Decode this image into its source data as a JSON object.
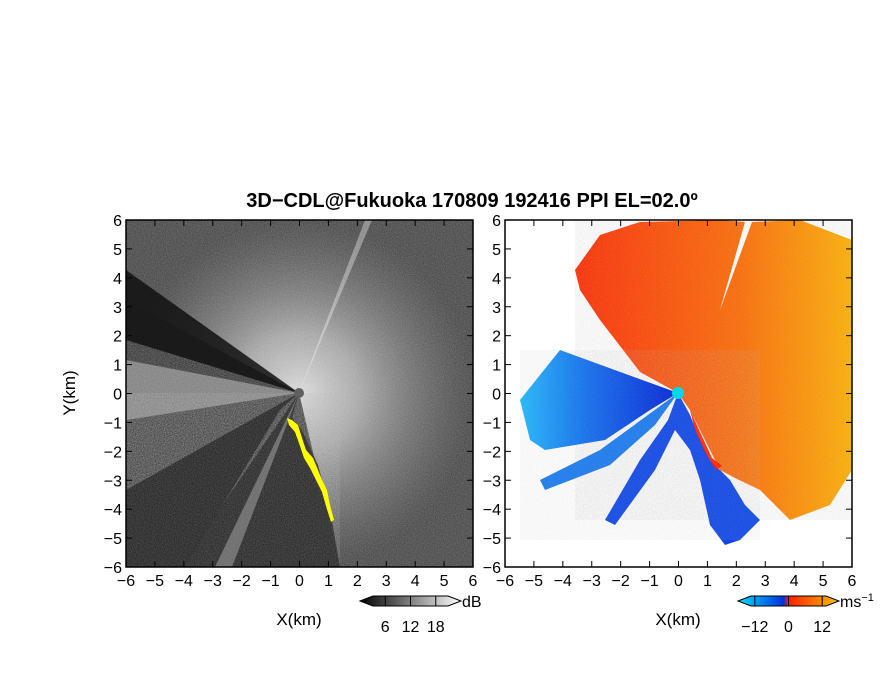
{
  "figure": {
    "title": "3D−CDL@Fukuoka 170809 192416 PPI EL=02.0º"
  },
  "chart_data": [
    {
      "type": "heatmap",
      "panel": "left",
      "description_quantity": "signal intensity",
      "xlabel": "X(km)",
      "ylabel": "Y(km)",
      "xlim": [
        -6,
        6
      ],
      "ylim": [
        -6,
        6
      ],
      "xticks": [
        "−6",
        "−5",
        "−4",
        "−3",
        "−2",
        "−1",
        "0",
        "1",
        "2",
        "3",
        "4",
        "5",
        "6"
      ],
      "yticks": [
        "−6",
        "−5",
        "−4",
        "−3",
        "−2",
        "−1",
        "0",
        "1",
        "2",
        "3",
        "4",
        "5",
        "6"
      ],
      "colorbar": {
        "unit": "dB",
        "ticks": [
          "6",
          "12",
          "18"
        ],
        "range": [
          0,
          24
        ],
        "colors": [
          "#000000",
          "#ffffff"
        ]
      },
      "overlay_color": "#ffff00",
      "center_marker_color": "#606060"
    },
    {
      "type": "heatmap",
      "panel": "right",
      "description_quantity": "radial velocity",
      "xlabel": "X(km)",
      "xlim": [
        -6,
        6
      ],
      "ylim": [
        -6,
        6
      ],
      "xticks": [
        "−6",
        "−5",
        "−4",
        "−3",
        "−2",
        "−1",
        "0",
        "1",
        "2",
        "3",
        "4",
        "5",
        "6"
      ],
      "yticks": [
        "−6",
        "−5",
        "−4",
        "−3",
        "−2",
        "−1",
        "0",
        "1",
        "2",
        "3",
        "4",
        "5",
        "6"
      ],
      "colorbar": {
        "unit": "ms",
        "unit_exp": "−1",
        "ticks": [
          "−12",
          "0",
          "12"
        ],
        "range": [
          -18,
          18
        ],
        "colors": [
          "#00e0ff",
          "#0030e0",
          "#ff2000",
          "#ffc000"
        ]
      },
      "center_marker_color": "#00d8e8"
    }
  ]
}
